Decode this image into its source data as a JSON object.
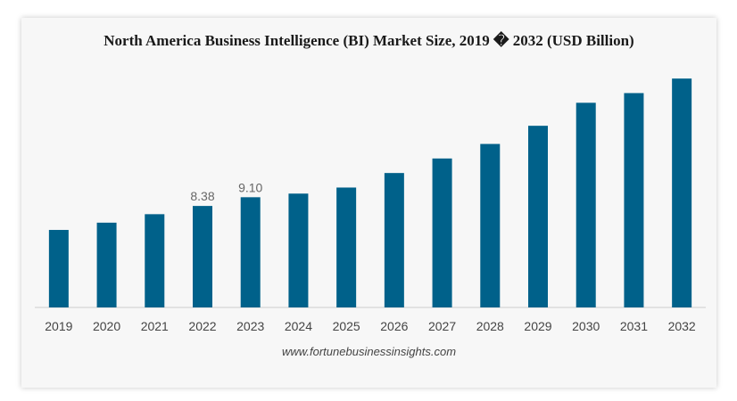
{
  "chart_data": {
    "type": "bar",
    "title": "North America Business Intelligence (BI) Market Size, 2019 � 2032 (USD Billion)",
    "categories": [
      "2019",
      "2020",
      "2021",
      "2022",
      "2023",
      "2024",
      "2025",
      "2026",
      "2027",
      "2028",
      "2029",
      "2030",
      "2031",
      "2032"
    ],
    "values": [
      6.4,
      7.0,
      7.7,
      8.38,
      9.1,
      9.4,
      9.9,
      11.1,
      12.3,
      13.5,
      15.0,
      16.9,
      17.7,
      18.9
    ],
    "data_labels": [
      {
        "index": 3,
        "text": "8.38"
      },
      {
        "index": 4,
        "text": "9.10"
      }
    ],
    "ylim": [
      0,
      19.5
    ],
    "xlabel": "",
    "ylabel": "",
    "grid": false,
    "legend": "none",
    "colors": {
      "bar": "#00618a",
      "axis": "#cccccc"
    }
  },
  "footer": {
    "source": "www.fortunebusinessinsights.com"
  }
}
